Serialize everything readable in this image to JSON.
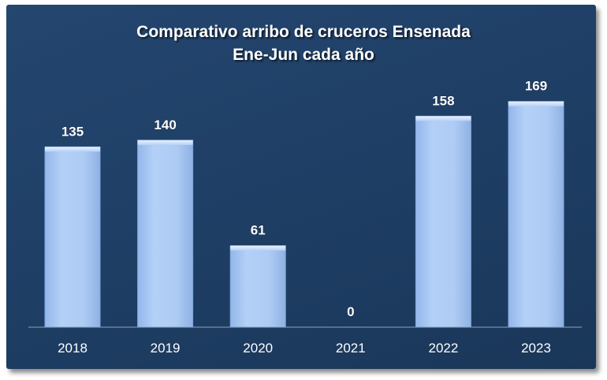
{
  "chart_data": {
    "type": "bar",
    "title": [
      "Comparativo arribo de cruceros Ensenada",
      "Ene-Jun cada año"
    ],
    "categories": [
      "2018",
      "2019",
      "2020",
      "2021",
      "2022",
      "2023"
    ],
    "values": [
      135,
      140,
      61,
      0,
      158,
      169
    ],
    "data_labels": [
      "135",
      "140",
      "61",
      "0",
      "158",
      "169"
    ],
    "xlabel": "",
    "ylabel": "",
    "ylim": [
      0,
      180
    ],
    "grid": false,
    "legend": "none"
  },
  "colors": {
    "background": "#1f3f66",
    "bar_fill_top": "#dbe9ff",
    "bar_fill": "#a9c8f3",
    "bar_edge": "#7fa6db",
    "text": "#ffffff",
    "axis": "#8aa2bf"
  }
}
